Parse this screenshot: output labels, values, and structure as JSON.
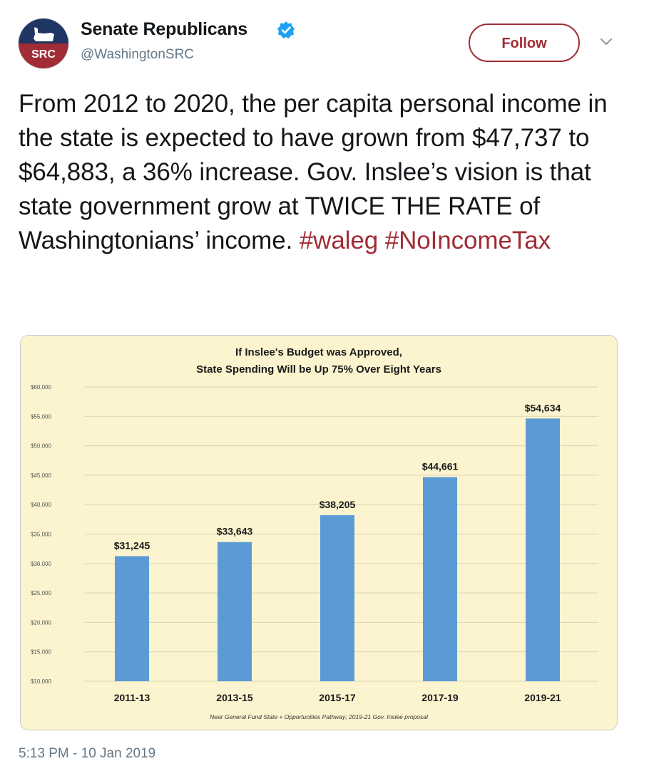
{
  "account": {
    "name": "Senate Republicans",
    "handle": "@WashingtonSRC",
    "avatar_text": "SRC",
    "verified": true,
    "brand_color": "#a02c35"
  },
  "follow_button": {
    "label": "Follow"
  },
  "menu": {
    "icon": "chevron-down-icon"
  },
  "tweet": {
    "text_parts": [
      "From 2012 to 2020, the per capita personal income in the state is expected to have grown from $47,737 to $64,883, a 36% increase. Gov. Inslee’s vision is that state government grow at TWICE THE RATE of Washingtonians’ income. ",
      "#waleg",
      " ",
      "#NoIncomeTax"
    ],
    "timestamp": "5:13 PM - 10 Jan 2019"
  },
  "chart_data": {
    "type": "bar",
    "title": "If Inslee's Budget was Approved,",
    "subtitle": "State Spending Will be Up 75% Over Eight Years",
    "footnote": "Near General Fund State + Opportunities Pathway;  2019-21 Gov. Inslee proposal",
    "categories": [
      "2011-13",
      "2013-15",
      "2015-17",
      "2017-19",
      "2019-21"
    ],
    "values": [
      31245,
      33643,
      38205,
      44661,
      54634
    ],
    "data_labels": [
      "$31,245",
      "$33,643",
      "$38,205",
      "$44,661",
      "$54,634"
    ],
    "ylim": [
      10000,
      60000
    ],
    "y_ticks": [
      10000,
      15000,
      20000,
      25000,
      30000,
      35000,
      40000,
      45000,
      50000,
      55000,
      60000
    ],
    "y_tick_labels": [
      "$10,000",
      "$15,000",
      "$20,000",
      "$25,000",
      "$30,000",
      "$35,000",
      "$40,000",
      "$45,000",
      "$50,000",
      "$55,000",
      "$60,000"
    ],
    "grid": true,
    "legend": "none",
    "bar_color": "#5b9bd5",
    "background_color": "#fcf4cf"
  }
}
